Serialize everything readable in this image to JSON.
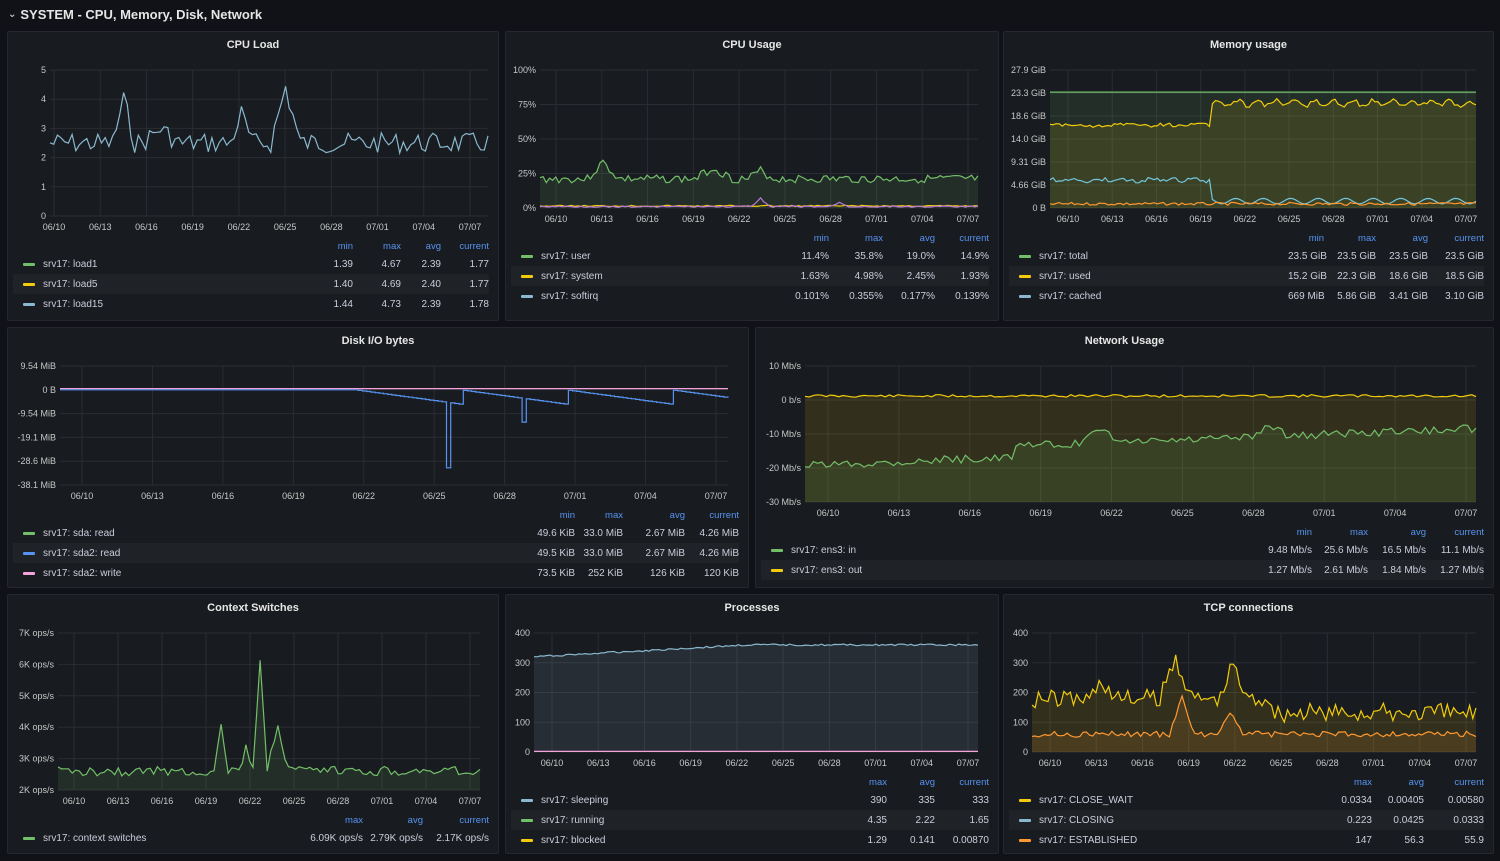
{
  "row": {
    "title": "SYSTEM - CPU, Memory, Disk, Network"
  },
  "colors": {
    "green": "#73bf69",
    "yellow": "#f2cc0c",
    "orange": "#ff9830",
    "blue": "#8ab8ff",
    "teal": "#8ab8cf",
    "cyan": "#73c6df",
    "purple": "#b877d9",
    "pink": "#f4a2d9",
    "accent": "#5794f2"
  },
  "panels": [
    {
      "id": "cpu-load",
      "title": "CPU Load",
      "y_ticks": [
        "5",
        "4",
        "3",
        "2",
        "1",
        "0"
      ],
      "x_ticks": [
        "06/10",
        "06/13",
        "06/16",
        "06/19",
        "06/22",
        "06/25",
        "06/28",
        "07/01",
        "07/04",
        "07/07"
      ],
      "legend_headers": [
        "min",
        "max",
        "avg",
        "current"
      ],
      "series": [
        {
          "name": "srv17: load1",
          "color": "#73bf69",
          "values": [
            "1.39",
            "4.67",
            "2.39",
            "1.77"
          ]
        },
        {
          "name": "srv17: load5",
          "color": "#f2cc0c",
          "values": [
            "1.40",
            "4.69",
            "2.40",
            "1.77"
          ]
        },
        {
          "name": "srv17: load15",
          "color": "#8ab8cf",
          "values": [
            "1.44",
            "4.73",
            "2.39",
            "1.78"
          ]
        }
      ]
    },
    {
      "id": "cpu-usage",
      "title": "CPU Usage",
      "y_ticks": [
        "100%",
        "75%",
        "50%",
        "25%",
        "0%"
      ],
      "x_ticks": [
        "06/10",
        "06/13",
        "06/16",
        "06/19",
        "06/22",
        "06/25",
        "06/28",
        "07/01",
        "07/04",
        "07/07"
      ],
      "legend_headers": [
        "min",
        "max",
        "avg",
        "current"
      ],
      "series": [
        {
          "name": "srv17: user",
          "color": "#73bf69",
          "values": [
            "11.4%",
            "35.8%",
            "19.0%",
            "14.9%"
          ]
        },
        {
          "name": "srv17: system",
          "color": "#f2cc0c",
          "values": [
            "1.63%",
            "4.98%",
            "2.45%",
            "1.93%"
          ]
        },
        {
          "name": "srv17: softirq",
          "color": "#8ab8cf",
          "values": [
            "0.101%",
            "0.355%",
            "0.177%",
            "0.139%"
          ]
        }
      ]
    },
    {
      "id": "memory-usage",
      "title": "Memory usage",
      "y_ticks": [
        "27.9 GiB",
        "23.3 GiB",
        "18.6 GiB",
        "14.0 GiB",
        "9.31 GiB",
        "4.66 GiB",
        "0 B"
      ],
      "x_ticks": [
        "06/10",
        "06/13",
        "06/16",
        "06/19",
        "06/22",
        "06/25",
        "06/28",
        "07/01",
        "07/04",
        "07/07"
      ],
      "legend_headers": [
        "min",
        "max",
        "avg",
        "current"
      ],
      "series": [
        {
          "name": "srv17: total",
          "color": "#73bf69",
          "values": [
            "23.5 GiB",
            "23.5 GiB",
            "23.5 GiB",
            "23.5 GiB"
          ]
        },
        {
          "name": "srv17: used",
          "color": "#f2cc0c",
          "values": [
            "15.2 GiB",
            "22.3 GiB",
            "18.6 GiB",
            "18.5 GiB"
          ]
        },
        {
          "name": "srv17: cached",
          "color": "#8ab8cf",
          "values": [
            "669 MiB",
            "5.86 GiB",
            "3.41 GiB",
            "3.10 GiB"
          ]
        }
      ]
    },
    {
      "id": "disk-io",
      "title": "Disk I/O bytes",
      "y_ticks": [
        "9.54 MiB",
        "0 B",
        "-9.54 MiB",
        "-19.1 MiB",
        "-28.6 MiB",
        "-38.1 MiB"
      ],
      "x_ticks": [
        "06/10",
        "06/13",
        "06/16",
        "06/19",
        "06/22",
        "06/25",
        "06/28",
        "07/01",
        "07/04",
        "07/07"
      ],
      "legend_headers": [
        "min",
        "max",
        "avg",
        "current"
      ],
      "series": [
        {
          "name": "srv17: sda: read",
          "color": "#73bf69",
          "values": [
            "49.6 KiB",
            "33.0 MiB",
            "2.67 MiB",
            "4.26 MiB"
          ]
        },
        {
          "name": "srv17: sda2: read",
          "color": "#5794f2",
          "values": [
            "49.5 KiB",
            "33.0 MiB",
            "2.67 MiB",
            "4.26 MiB"
          ]
        },
        {
          "name": "srv17: sda2: write",
          "color": "#f4a2d9",
          "values": [
            "73.5 KiB",
            "252 KiB",
            "126 KiB",
            "120 KiB"
          ]
        }
      ]
    },
    {
      "id": "network-usage",
      "title": "Network Usage",
      "y_ticks": [
        "10 Mb/s",
        "0 b/s",
        "-10 Mb/s",
        "-20 Mb/s",
        "-30 Mb/s"
      ],
      "x_ticks": [
        "06/10",
        "06/13",
        "06/16",
        "06/19",
        "06/22",
        "06/25",
        "06/28",
        "07/01",
        "07/04",
        "07/07"
      ],
      "legend_headers": [
        "min",
        "max",
        "avg",
        "current"
      ],
      "series": [
        {
          "name": "srv17: ens3: in",
          "color": "#73bf69",
          "values": [
            "9.48 Mb/s",
            "25.6 Mb/s",
            "16.5 Mb/s",
            "11.1 Mb/s"
          ]
        },
        {
          "name": "srv17: ens3: out",
          "color": "#f2cc0c",
          "values": [
            "1.27 Mb/s",
            "2.61 Mb/s",
            "1.84 Mb/s",
            "1.27 Mb/s"
          ]
        }
      ]
    },
    {
      "id": "context-switches",
      "title": "Context Switches",
      "y_ticks": [
        "7K ops/s",
        "6K ops/s",
        "5K ops/s",
        "4K ops/s",
        "3K ops/s",
        "2K ops/s"
      ],
      "x_ticks": [
        "06/10",
        "06/13",
        "06/16",
        "06/19",
        "06/22",
        "06/25",
        "06/28",
        "07/01",
        "07/04",
        "07/07"
      ],
      "legend_headers": [
        "max",
        "avg",
        "current"
      ],
      "series": [
        {
          "name": "srv17: context switches",
          "color": "#73bf69",
          "values": [
            "6.09K ops/s",
            "2.79K ops/s",
            "2.17K ops/s"
          ]
        }
      ]
    },
    {
      "id": "processes",
      "title": "Processes",
      "y_ticks": [
        "400",
        "300",
        "200",
        "100",
        "0"
      ],
      "x_ticks": [
        "06/10",
        "06/13",
        "06/16",
        "06/19",
        "06/22",
        "06/25",
        "06/28",
        "07/01",
        "07/04",
        "07/07"
      ],
      "legend_headers": [
        "max",
        "avg",
        "current"
      ],
      "series": [
        {
          "name": "srv17: sleeping",
          "color": "#8ab8cf",
          "values": [
            "390",
            "335",
            "333"
          ]
        },
        {
          "name": "srv17: running",
          "color": "#73bf69",
          "values": [
            "4.35",
            "2.22",
            "1.65"
          ]
        },
        {
          "name": "srv17: blocked",
          "color": "#f2cc0c",
          "values": [
            "1.29",
            "0.141",
            "0.00870"
          ]
        }
      ]
    },
    {
      "id": "tcp-connections",
      "title": "TCP connections",
      "y_ticks": [
        "400",
        "300",
        "200",
        "100",
        "0"
      ],
      "x_ticks": [
        "06/10",
        "06/13",
        "06/16",
        "06/19",
        "06/22",
        "06/25",
        "06/28",
        "07/01",
        "07/04",
        "07/07"
      ],
      "legend_headers": [
        "max",
        "avg",
        "current"
      ],
      "series": [
        {
          "name": "srv17: CLOSE_WAIT",
          "color": "#f2cc0c",
          "values": [
            "0.0334",
            "0.00405",
            "0.00580"
          ]
        },
        {
          "name": "srv17: CLOSING",
          "color": "#8ab8cf",
          "values": [
            "0.223",
            "0.0425",
            "0.0333"
          ]
        },
        {
          "name": "srv17: ESTABLISHED",
          "color": "#ff9830",
          "values": [
            "147",
            "56.3",
            "55.9"
          ]
        }
      ]
    }
  ]
}
